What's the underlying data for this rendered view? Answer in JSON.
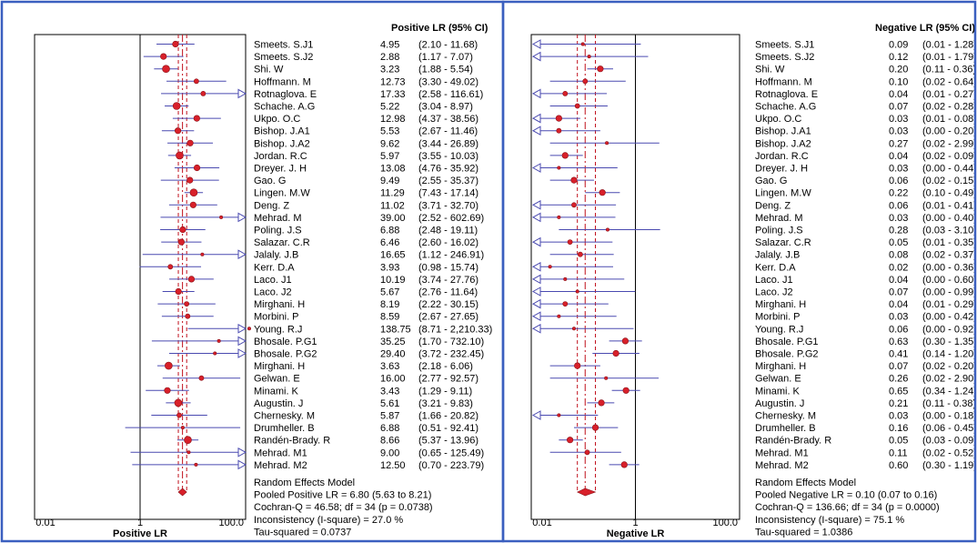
{
  "chart_data": [
    {
      "type": "forest",
      "panel": "left",
      "header": "Positive LR (95% CI)",
      "xlabel": "Positive LR",
      "scale": "log",
      "xlim": [
        0.01,
        100
      ],
      "ticks": [
        "0.01",
        "1",
        "100.0"
      ],
      "pooled_estimate": 6.8,
      "pooled_ci": [
        5.63,
        8.21
      ],
      "studies": [
        {
          "name": "Smeets. S.J1",
          "est": 4.95,
          "lo": 2.1,
          "hi": 11.68,
          "est_text": "4.95",
          "ci_text": "(2.10 - 11.68)",
          "w": 3
        },
        {
          "name": "Smeets. S.J2",
          "est": 2.88,
          "lo": 1.17,
          "hi": 7.07,
          "est_text": "2.88",
          "ci_text": "(1.17 - 7.07)",
          "w": 3
        },
        {
          "name": "Shi. W",
          "est": 3.23,
          "lo": 1.88,
          "hi": 5.54,
          "est_text": "3.23",
          "ci_text": "(1.88 - 5.54)",
          "w": 4
        },
        {
          "name": "Hoffmann. M",
          "est": 12.73,
          "lo": 3.3,
          "hi": 49.02,
          "est_text": "12.73",
          "ci_text": "(3.30 - 49.02)",
          "w": 2
        },
        {
          "name": "Rotnaglova. E",
          "est": 17.33,
          "lo": 2.58,
          "hi": 116.61,
          "est_text": "17.33",
          "ci_text": "(2.58 - 116.61)",
          "w": 2
        },
        {
          "name": "Schache. A.G",
          "est": 5.22,
          "lo": 3.04,
          "hi": 8.97,
          "est_text": "5.22",
          "ci_text": "(3.04 - 8.97)",
          "w": 4
        },
        {
          "name": "Ukpo. O.C",
          "est": 12.98,
          "lo": 4.37,
          "hi": 38.56,
          "est_text": "12.98",
          "ci_text": "(4.37 - 38.56)",
          "w": 3
        },
        {
          "name": "Bishop. J.A1",
          "est": 5.53,
          "lo": 2.67,
          "hi": 11.46,
          "est_text": "5.53",
          "ci_text": "(2.67 - 11.46)",
          "w": 3
        },
        {
          "name": "Bishop. J.A2",
          "est": 9.62,
          "lo": 3.44,
          "hi": 26.89,
          "est_text": "9.62",
          "ci_text": "(3.44 - 26.89)",
          "w": 3
        },
        {
          "name": "Jordan. R.C",
          "est": 5.97,
          "lo": 3.55,
          "hi": 10.03,
          "est_text": "5.97",
          "ci_text": "(3.55 - 10.03)",
          "w": 4
        },
        {
          "name": "Dreyer. J. H",
          "est": 13.08,
          "lo": 4.76,
          "hi": 35.92,
          "est_text": "13.08",
          "ci_text": "(4.76 - 35.92)",
          "w": 3
        },
        {
          "name": "Gao. G",
          "est": 9.49,
          "lo": 2.55,
          "hi": 35.37,
          "est_text": "9.49",
          "ci_text": "(2.55 - 35.37)",
          "w": 3
        },
        {
          "name": "Lingen. M.W",
          "est": 11.29,
          "lo": 7.43,
          "hi": 17.14,
          "est_text": "11.29",
          "ci_text": "(7.43 - 17.14)",
          "w": 4
        },
        {
          "name": "Deng. Z",
          "est": 11.02,
          "lo": 3.71,
          "hi": 32.7,
          "est_text": "11.02",
          "ci_text": "(3.71 - 32.70)",
          "w": 3
        },
        {
          "name": "Mehrad. M",
          "est": 39.0,
          "lo": 2.52,
          "hi": 602.69,
          "est_text": "39.00",
          "ci_text": "(2.52 - 602.69)",
          "w": 1
        },
        {
          "name": "Poling. J.S",
          "est": 6.88,
          "lo": 2.48,
          "hi": 19.11,
          "est_text": "6.88",
          "ci_text": "(2.48 - 19.11)",
          "w": 3
        },
        {
          "name": "Salazar. C.R",
          "est": 6.46,
          "lo": 2.6,
          "hi": 16.02,
          "est_text": "6.46",
          "ci_text": "(2.60 - 16.02)",
          "w": 3
        },
        {
          "name": "Jalaly. J.B",
          "est": 16.65,
          "lo": 1.12,
          "hi": 246.91,
          "est_text": "16.65",
          "ci_text": "(1.12 - 246.91)",
          "w": 1
        },
        {
          "name": "Kerr. D.A",
          "est": 3.93,
          "lo": 0.98,
          "hi": 15.74,
          "est_text": "3.93",
          "ci_text": "(0.98 - 15.74)",
          "w": 2
        },
        {
          "name": "Laco. J1",
          "est": 10.19,
          "lo": 3.74,
          "hi": 27.76,
          "est_text": "10.19",
          "ci_text": "(3.74 - 27.76)",
          "w": 3
        },
        {
          "name": "Laco. J2",
          "est": 5.67,
          "lo": 2.76,
          "hi": 11.64,
          "est_text": "5.67",
          "ci_text": "(2.76 - 11.64)",
          "w": 3
        },
        {
          "name": "Mirghani. H",
          "est": 8.19,
          "lo": 2.22,
          "hi": 30.15,
          "est_text": "8.19",
          "ci_text": "(2.22 - 30.15)",
          "w": 2
        },
        {
          "name": "Morbini. P",
          "est": 8.59,
          "lo": 2.67,
          "hi": 27.65,
          "est_text": "8.59",
          "ci_text": "(2.67 - 27.65)",
          "w": 2
        },
        {
          "name": "Young. R.J",
          "est": 138.75,
          "lo": 8.71,
          "hi": 2210.33,
          "est_text": "138.75",
          "ci_text": "(8.71 - 2,210.33)",
          "w": 1
        },
        {
          "name": "Bhosale. P.G1",
          "est": 35.25,
          "lo": 1.7,
          "hi": 732.1,
          "est_text": "35.25",
          "ci_text": "(1.70 - 732.10)",
          "w": 1
        },
        {
          "name": "Bhosale. P.G2",
          "est": 29.4,
          "lo": 3.72,
          "hi": 232.45,
          "est_text": "29.40",
          "ci_text": "(3.72 - 232.45)",
          "w": 1
        },
        {
          "name": "Mirghani. H",
          "est": 3.63,
          "lo": 2.18,
          "hi": 6.06,
          "est_text": "3.63",
          "ci_text": "(2.18 - 6.06)",
          "w": 4
        },
        {
          "name": "Gelwan. E",
          "est": 16.0,
          "lo": 2.77,
          "hi": 92.57,
          "est_text": "16.00",
          "ci_text": "(2.77 - 92.57)",
          "w": 2
        },
        {
          "name": "Minami. K",
          "est": 3.43,
          "lo": 1.29,
          "hi": 9.11,
          "est_text": "3.43",
          "ci_text": "(1.29 - 9.11)",
          "w": 3
        },
        {
          "name": "Augustin. J",
          "est": 5.61,
          "lo": 3.21,
          "hi": 9.83,
          "est_text": "5.61",
          "ci_text": "(3.21 - 9.83)",
          "w": 4
        },
        {
          "name": "Chernesky. M",
          "est": 5.87,
          "lo": 1.66,
          "hi": 20.82,
          "est_text": "5.87",
          "ci_text": "(1.66 - 20.82)",
          "w": 2
        },
        {
          "name": "Drumheller. B",
          "est": 6.88,
          "lo": 0.51,
          "hi": 92.41,
          "est_text": "6.88",
          "ci_text": "(0.51 - 92.41)",
          "w": 1
        },
        {
          "name": "Randén-Brady. R",
          "est": 8.66,
          "lo": 5.37,
          "hi": 13.96,
          "est_text": "8.66",
          "ci_text": "(5.37 - 13.96)",
          "w": 4
        },
        {
          "name": "Mehrad. M1",
          "est": 9.0,
          "lo": 0.65,
          "hi": 125.49,
          "est_text": "9.00",
          "ci_text": "(0.65 - 125.49)",
          "w": 1
        },
        {
          "name": "Mehrad. M2",
          "est": 12.5,
          "lo": 0.7,
          "hi": 223.79,
          "est_text": "12.50",
          "ci_text": "(0.70 - 223.79)",
          "w": 1
        }
      ],
      "summary": [
        "Random Effects Model",
        "Pooled Positive LR = 6.80 (5.63 to 8.21)",
        "Cochran-Q = 46.58; df = 34 (p = 0.0738)",
        "Inconsistency (I-square) = 27.0 %",
        "Tau-squared = 0.0737"
      ]
    },
    {
      "type": "forest",
      "panel": "right",
      "header": "Negative LR (95% CI)",
      "xlabel": "Negative LR",
      "scale": "log",
      "xlim": [
        0.01,
        100
      ],
      "ticks": [
        "0.01",
        "1",
        "100.0"
      ],
      "pooled_estimate": 0.1,
      "pooled_ci": [
        0.07,
        0.16
      ],
      "studies": [
        {
          "name": "Smeets. S.J1",
          "est": 0.09,
          "lo": 0.01,
          "hi": 1.28,
          "est_text": "0.09",
          "ci_text": "(0.01 - 1.28)",
          "w": 1
        },
        {
          "name": "Smeets. S.J2",
          "est": 0.12,
          "lo": 0.01,
          "hi": 1.79,
          "est_text": "0.12",
          "ci_text": "(0.01 - 1.79)",
          "w": 1
        },
        {
          "name": "Shi. W",
          "est": 0.2,
          "lo": 0.11,
          "hi": 0.36,
          "est_text": "0.20",
          "ci_text": "(0.11 - 0.36)",
          "w": 3
        },
        {
          "name": "Hoffmann. M",
          "est": 0.1,
          "lo": 0.02,
          "hi": 0.64,
          "est_text": "0.10",
          "ci_text": "(0.02 - 0.64)",
          "w": 2
        },
        {
          "name": "Rotnaglova. E",
          "est": 0.04,
          "lo": 0.01,
          "hi": 0.27,
          "est_text": "0.04",
          "ci_text": "(0.01 - 0.27)",
          "w": 2
        },
        {
          "name": "Schache. A.G",
          "est": 0.07,
          "lo": 0.02,
          "hi": 0.28,
          "est_text": "0.07",
          "ci_text": "(0.02 - 0.28)",
          "w": 2
        },
        {
          "name": "Ukpo. O.C",
          "est": 0.03,
          "lo": 0.01,
          "hi": 0.08,
          "est_text": "0.03",
          "ci_text": "(0.01 - 0.08)",
          "w": 3
        },
        {
          "name": "Bishop. J.A1",
          "est": 0.03,
          "lo": 0.0,
          "hi": 0.2,
          "est_text": "0.03",
          "ci_text": "(0.00 - 0.20)",
          "w": 2
        },
        {
          "name": "Bishop. J.A2",
          "est": 0.27,
          "lo": 0.02,
          "hi": 2.99,
          "est_text": "0.27",
          "ci_text": "(0.02 - 2.99)",
          "w": 1
        },
        {
          "name": "Jordan. R.C",
          "est": 0.04,
          "lo": 0.02,
          "hi": 0.09,
          "est_text": "0.04",
          "ci_text": "(0.02 - 0.09)",
          "w": 3
        },
        {
          "name": "Dreyer. J. H",
          "est": 0.03,
          "lo": 0.0,
          "hi": 0.44,
          "est_text": "0.03",
          "ci_text": "(0.00 - 0.44)",
          "w": 1
        },
        {
          "name": "Gao. G",
          "est": 0.06,
          "lo": 0.02,
          "hi": 0.15,
          "est_text": "0.06",
          "ci_text": "(0.02 - 0.15)",
          "w": 3
        },
        {
          "name": "Lingen. M.W",
          "est": 0.22,
          "lo": 0.1,
          "hi": 0.49,
          "est_text": "0.22",
          "ci_text": "(0.10 - 0.49)",
          "w": 3
        },
        {
          "name": "Deng. Z",
          "est": 0.06,
          "lo": 0.01,
          "hi": 0.41,
          "est_text": "0.06",
          "ci_text": "(0.01 - 0.41)",
          "w": 2
        },
        {
          "name": "Mehrad. M",
          "est": 0.03,
          "lo": 0.0,
          "hi": 0.4,
          "est_text": "0.03",
          "ci_text": "(0.00 - 0.40)",
          "w": 1
        },
        {
          "name": "Poling. J.S",
          "est": 0.28,
          "lo": 0.03,
          "hi": 3.1,
          "est_text": "0.28",
          "ci_text": "(0.03 - 3.10)",
          "w": 1
        },
        {
          "name": "Salazar. C.R",
          "est": 0.05,
          "lo": 0.01,
          "hi": 0.35,
          "est_text": "0.05",
          "ci_text": "(0.01 - 0.35)",
          "w": 2
        },
        {
          "name": "Jalaly. J.B",
          "est": 0.08,
          "lo": 0.02,
          "hi": 0.37,
          "est_text": "0.08",
          "ci_text": "(0.02 - 0.37)",
          "w": 2
        },
        {
          "name": "Kerr. D.A",
          "est": 0.02,
          "lo": 0.0,
          "hi": 0.36,
          "est_text": "0.02",
          "ci_text": "(0.00 - 0.36)",
          "w": 1
        },
        {
          "name": "Laco. J1",
          "est": 0.04,
          "lo": 0.0,
          "hi": 0.6,
          "est_text": "0.04",
          "ci_text": "(0.00 - 0.60)",
          "w": 1
        },
        {
          "name": "Laco. J2",
          "est": 0.07,
          "lo": 0.0,
          "hi": 0.99,
          "est_text": "0.07",
          "ci_text": "(0.00 - 0.99)",
          "w": 1
        },
        {
          "name": "Mirghani. H",
          "est": 0.04,
          "lo": 0.01,
          "hi": 0.29,
          "est_text": "0.04",
          "ci_text": "(0.01 - 0.29)",
          "w": 2
        },
        {
          "name": "Morbini. P",
          "est": 0.03,
          "lo": 0.0,
          "hi": 0.42,
          "est_text": "0.03",
          "ci_text": "(0.00 - 0.42)",
          "w": 1
        },
        {
          "name": "Young. R.J",
          "est": 0.06,
          "lo": 0.0,
          "hi": 0.92,
          "est_text": "0.06",
          "ci_text": "(0.00 - 0.92)",
          "w": 1
        },
        {
          "name": "Bhosale. P.G1",
          "est": 0.63,
          "lo": 0.3,
          "hi": 1.35,
          "est_text": "0.63",
          "ci_text": "(0.30 - 1.35)",
          "w": 3
        },
        {
          "name": "Bhosale. P.G2",
          "est": 0.41,
          "lo": 0.14,
          "hi": 1.2,
          "est_text": "0.41",
          "ci_text": "(0.14 - 1.20)",
          "w": 3
        },
        {
          "name": "Mirghani. H",
          "est": 0.07,
          "lo": 0.02,
          "hi": 0.2,
          "est_text": "0.07",
          "ci_text": "(0.02 - 0.20)",
          "w": 3
        },
        {
          "name": "Gelwan. E",
          "est": 0.26,
          "lo": 0.02,
          "hi": 2.9,
          "est_text": "0.26",
          "ci_text": "(0.02 - 2.90)",
          "w": 1
        },
        {
          "name": "Minami. K",
          "est": 0.65,
          "lo": 0.34,
          "hi": 1.24,
          "est_text": "0.65",
          "ci_text": "(0.34 - 1.24)",
          "w": 3
        },
        {
          "name": "Augustin. J",
          "est": 0.21,
          "lo": 0.11,
          "hi": 0.38,
          "est_text": "0.21",
          "ci_text": "(0.11 - 0.38)",
          "w": 3
        },
        {
          "name": "Chernesky. M",
          "est": 0.03,
          "lo": 0.0,
          "hi": 0.18,
          "est_text": "0.03",
          "ci_text": "(0.00 - 0.18)",
          "w": 1
        },
        {
          "name": "Drumheller. B",
          "est": 0.16,
          "lo": 0.06,
          "hi": 0.45,
          "est_text": "0.16",
          "ci_text": "(0.06 - 0.45)",
          "w": 3
        },
        {
          "name": "Randén-Brady. R",
          "est": 0.05,
          "lo": 0.03,
          "hi": 0.09,
          "est_text": "0.05",
          "ci_text": "(0.03 - 0.09)",
          "w": 3
        },
        {
          "name": "Mehrad. M1",
          "est": 0.11,
          "lo": 0.02,
          "hi": 0.52,
          "est_text": "0.11",
          "ci_text": "(0.02 - 0.52)",
          "w": 2
        },
        {
          "name": "Mehrad. M2",
          "est": 0.6,
          "lo": 0.3,
          "hi": 1.19,
          "est_text": "0.60",
          "ci_text": "(0.30 - 1.19)",
          "w": 3
        }
      ],
      "summary": [
        "Random Effects Model",
        "Pooled Negative LR = 0.10 (0.07 to 0.16)",
        "Cochran-Q = 136.66; df = 34 (p = 0.0000)",
        "Inconsistency (I-square) = 75.1 %",
        "Tau-squared = 1.0386"
      ]
    }
  ],
  "colors": {
    "frame": "#3a5fbf",
    "ci_line": "#4a4ab0",
    "marker": "#d8202a",
    "marker_stroke": "#8a1018",
    "pooled_line": "#c0101c",
    "axis": "#000000"
  }
}
